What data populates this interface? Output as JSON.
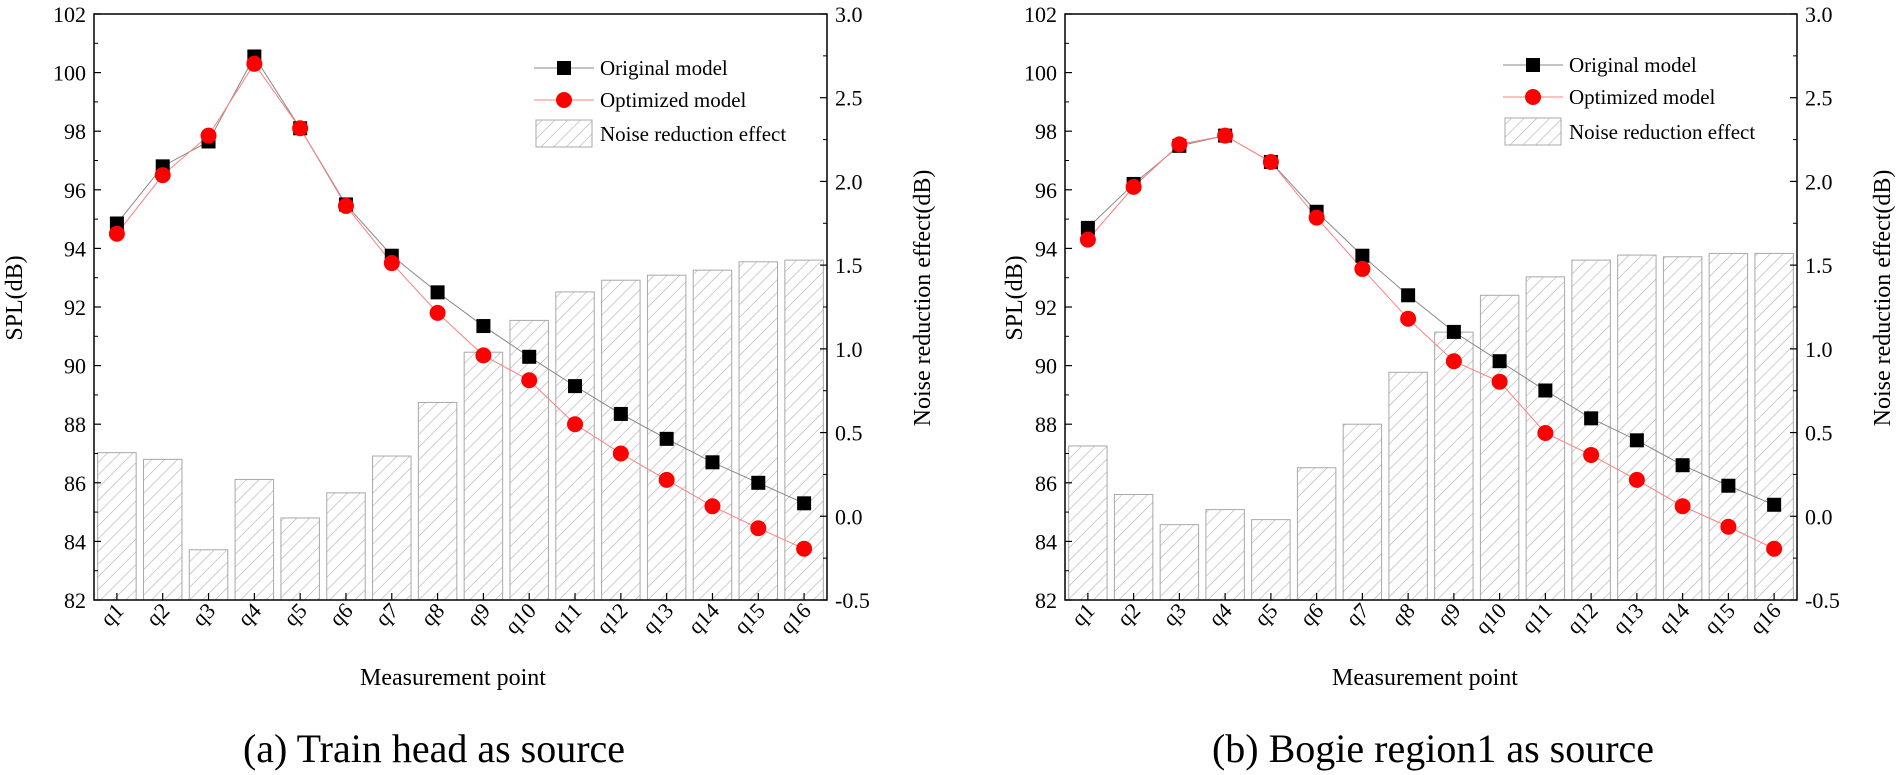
{
  "charts": [
    {
      "caption": "(a) Train head as source",
      "chart_data": {
        "type": "bar+line",
        "categories": [
          "q1",
          "q2",
          "q3",
          "q4",
          "q5",
          "q6",
          "q7",
          "q8",
          "q9",
          "q10",
          "q11",
          "q12",
          "q13",
          "q14",
          "q15",
          "q16"
        ],
        "series": [
          {
            "name": "Original model",
            "axis": "left",
            "marker": "square",
            "color": "#000000",
            "values": [
              94.85,
              96.8,
              97.65,
              100.55,
              98.1,
              95.5,
              93.75,
              92.5,
              91.35,
              90.3,
              89.3,
              88.35,
              87.5,
              86.7,
              86.0,
              85.3
            ]
          },
          {
            "name": "Optimized model",
            "axis": "left",
            "marker": "circle",
            "color": "#ff0000",
            "values": [
              94.5,
              96.5,
              97.85,
              100.3,
              98.1,
              95.45,
              93.5,
              91.8,
              90.35,
              89.5,
              88.0,
              87.0,
              86.1,
              85.2,
              84.45,
              83.75
            ]
          },
          {
            "name": "Noise reduction effect",
            "axis": "right",
            "type": "bar",
            "pattern": "hatch",
            "values": [
              0.38,
              0.34,
              -0.2,
              0.22,
              -0.01,
              0.14,
              0.36,
              0.68,
              0.98,
              1.17,
              1.34,
              1.41,
              1.44,
              1.47,
              1.52,
              1.53
            ]
          }
        ],
        "xlabel": "Measurement point",
        "ylabel": "SPL(dB)",
        "y2label": "Noise reduction effect(dB)",
        "ylim": [
          82,
          102
        ],
        "yticks": [
          "82",
          "84",
          "86",
          "88",
          "90",
          "92",
          "94",
          "96",
          "98",
          "100",
          "102"
        ],
        "y2lim": [
          -0.5,
          3.0
        ],
        "y2ticks": [
          "-0.5",
          "0.0",
          "0.5",
          "1.0",
          "1.5",
          "2.0",
          "2.5",
          "3.0"
        ],
        "legend_position": "top-right"
      }
    },
    {
      "caption": "(b) Bogie region1 as source",
      "chart_data": {
        "type": "bar+line",
        "categories": [
          "q1",
          "q2",
          "q3",
          "q4",
          "q5",
          "q6",
          "q7",
          "q8",
          "q9",
          "q10",
          "q11",
          "q12",
          "q13",
          "q14",
          "q15",
          "q16"
        ],
        "series": [
          {
            "name": "Original model",
            "axis": "left",
            "marker": "square",
            "color": "#000000",
            "values": [
              94.7,
              96.2,
              97.5,
              97.85,
              96.95,
              95.25,
              93.75,
              92.4,
              91.15,
              90.15,
              89.15,
              88.2,
              87.45,
              86.6,
              85.9,
              85.25
            ]
          },
          {
            "name": "Optimized model",
            "axis": "left",
            "marker": "circle",
            "color": "#ff0000",
            "values": [
              94.3,
              96.1,
              97.55,
              97.85,
              96.95,
              95.05,
              93.3,
              91.6,
              90.15,
              89.45,
              87.7,
              86.95,
              86.1,
              85.2,
              84.5,
              83.75
            ]
          },
          {
            "name": "Noise reduction effect",
            "axis": "right",
            "type": "bar",
            "pattern": "hatch",
            "values": [
              0.42,
              0.13,
              -0.05,
              0.04,
              -0.02,
              0.29,
              0.55,
              0.86,
              1.1,
              1.32,
              1.43,
              1.53,
              1.56,
              1.55,
              1.57,
              1.57
            ]
          }
        ],
        "xlabel": "Measurement point",
        "ylabel": "SPL(dB)",
        "y2label": "Noise reduction effect(dB)",
        "ylim": [
          82,
          102
        ],
        "yticks": [
          "82",
          "84",
          "86",
          "88",
          "90",
          "92",
          "94",
          "96",
          "98",
          "100",
          "102"
        ],
        "y2lim": [
          -0.5,
          3.0
        ],
        "y2ticks": [
          "-0.5",
          "0.0",
          "0.5",
          "1.0",
          "1.5",
          "2.0",
          "2.5",
          "3.0"
        ],
        "legend_position": "top-right"
      }
    }
  ]
}
